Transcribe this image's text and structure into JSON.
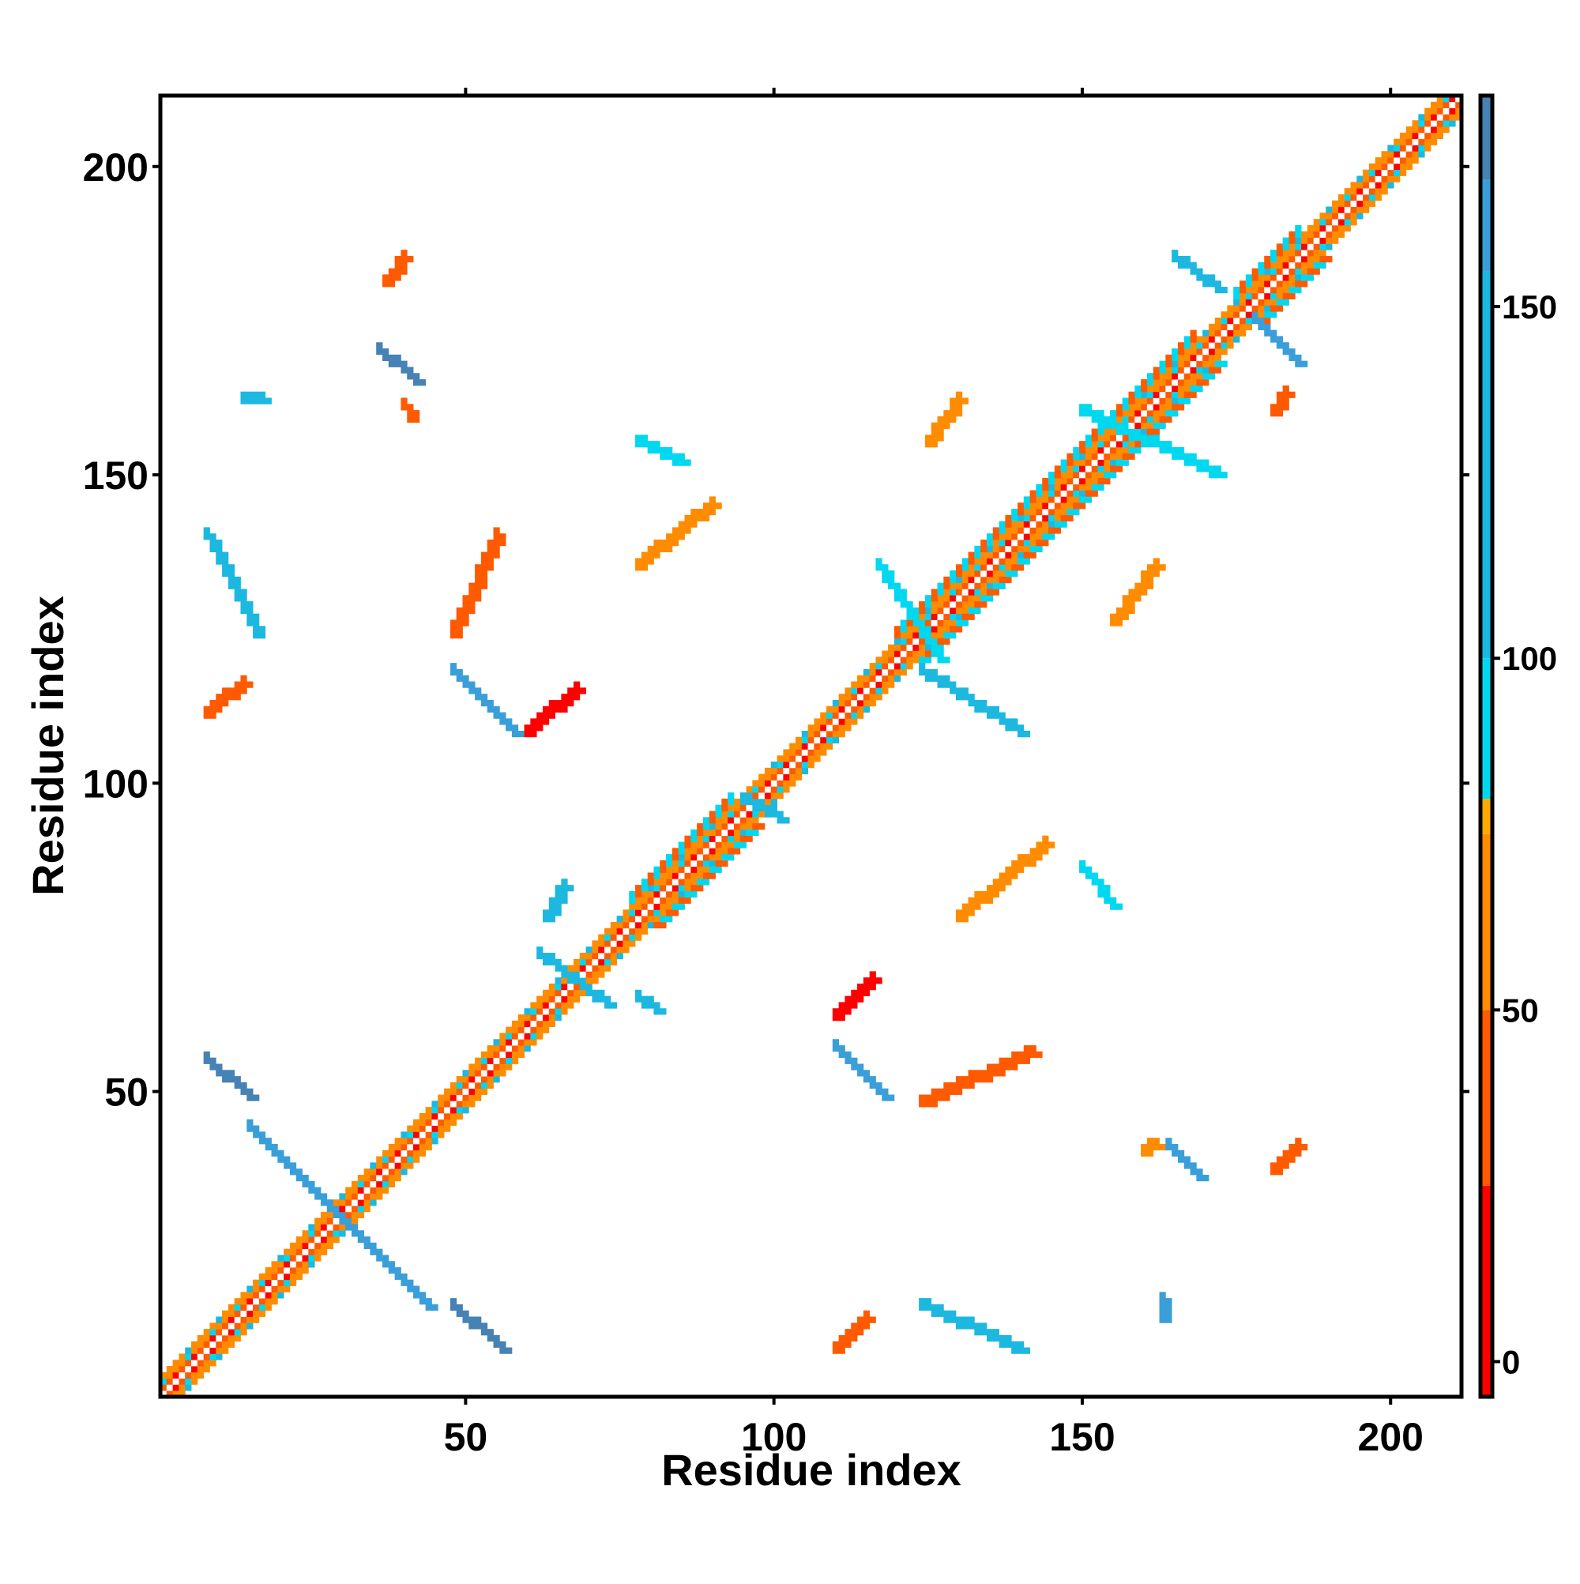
{
  "chart_data": {
    "type": "heatmap",
    "title": "",
    "xlabel": "Residue index",
    "ylabel": "Residue index",
    "xlim": [
      1,
      211
    ],
    "ylim": [
      1,
      211
    ],
    "xticks": [
      50,
      100,
      150,
      200
    ],
    "yticks": [
      50,
      100,
      150,
      200
    ],
    "colorbar": {
      "range": [
        -5,
        180
      ],
      "ticks": [
        0,
        50,
        100,
        150
      ],
      "segments": [
        {
          "from": -5,
          "to": 25,
          "color": "#ff0000"
        },
        {
          "from": 25,
          "to": 50,
          "color": "#ff5a00"
        },
        {
          "from": 50,
          "to": 75,
          "color": "#ff8c00"
        },
        {
          "from": 75,
          "to": 80,
          "color": "#ffaa00"
        },
        {
          "from": 80,
          "to": 100,
          "color": "#00d8f0"
        },
        {
          "from": 100,
          "to": 155,
          "color": "#1cb8e0"
        },
        {
          "from": 155,
          "to": 168,
          "color": "#3a9fd8"
        },
        {
          "from": 168,
          "to": 180,
          "color": "#4682b4"
        }
      ]
    },
    "grid": false,
    "features": [
      {
        "kind": "diagonal-band",
        "description": "main diagonal, residues 1-211",
        "value_range": [
          0,
          60
        ]
      },
      {
        "kind": "segment",
        "from": [
          8,
          55
        ],
        "to": [
          15,
          49
        ],
        "value": 170
      },
      {
        "kind": "segment",
        "from": [
          15,
          44
        ],
        "to": [
          44,
          15
        ],
        "value": 165
      },
      {
        "kind": "segment",
        "from": [
          48,
          15
        ],
        "to": [
          56,
          8
        ],
        "value": 170
      },
      {
        "kind": "segment",
        "from": [
          48,
          118
        ],
        "to": [
          58,
          108
        ],
        "value": 168
      },
      {
        "kind": "segment",
        "from": [
          60,
          108
        ],
        "to": [
          68,
          115
        ],
        "value": 5
      },
      {
        "kind": "segment",
        "from": [
          110,
          57
        ],
        "to": [
          118,
          49
        ],
        "value": 168
      },
      {
        "kind": "segment",
        "from": [
          110,
          62
        ],
        "to": [
          116,
          68
        ],
        "value": 5
      },
      {
        "kind": "segment",
        "from": [
          8,
          140
        ],
        "to": [
          16,
          124
        ],
        "value": 120
      },
      {
        "kind": "segment",
        "from": [
          8,
          111
        ],
        "to": [
          14,
          116
        ],
        "value": 40
      },
      {
        "kind": "segment",
        "from": [
          14,
          162
        ],
        "to": [
          17,
          162
        ],
        "value": 150
      },
      {
        "kind": "segment",
        "from": [
          36,
          170
        ],
        "to": [
          42,
          165
        ],
        "value": 170
      },
      {
        "kind": "segment",
        "from": [
          37,
          181
        ],
        "to": [
          40,
          185
        ],
        "value": 50
      },
      {
        "kind": "segment",
        "from": [
          40,
          161
        ],
        "to": [
          41,
          159
        ],
        "value": 50
      },
      {
        "kind": "segment",
        "from": [
          48,
          124
        ],
        "to": [
          55,
          140
        ],
        "value": 30
      },
      {
        "kind": "segment",
        "from": [
          110,
          8
        ],
        "to": [
          115,
          13
        ],
        "value": 40
      },
      {
        "kind": "segment",
        "from": [
          124,
          15
        ],
        "to": [
          140,
          8
        ],
        "value": 120
      },
      {
        "kind": "segment",
        "from": [
          163,
          13
        ],
        "to": [
          163,
          16
        ],
        "value": 165
      },
      {
        "kind": "segment",
        "from": [
          124,
          48
        ],
        "to": [
          142,
          56
        ],
        "value": 35
      },
      {
        "kind": "segment",
        "from": [
          160,
          40
        ],
        "to": [
          162,
          41
        ],
        "value": 55
      },
      {
        "kind": "segment",
        "from": [
          164,
          41
        ],
        "to": [
          169,
          36
        ],
        "value": 165
      },
      {
        "kind": "segment",
        "from": [
          181,
          37
        ],
        "to": [
          185,
          41
        ],
        "value": 50
      },
      {
        "kind": "segment",
        "from": [
          165,
          185
        ],
        "to": [
          172,
          180
        ],
        "value": 130
      },
      {
        "kind": "segment",
        "from": [
          178,
          175
        ],
        "to": [
          185,
          168
        ],
        "value": 160
      },
      {
        "kind": "segment",
        "from": [
          181,
          160
        ],
        "to": [
          183,
          163
        ],
        "value": 30
      },
      {
        "kind": "segment",
        "from": [
          125,
          155
        ],
        "to": [
          130,
          162
        ],
        "value": 55
      },
      {
        "kind": "segment",
        "from": [
          155,
          126
        ],
        "to": [
          162,
          135
        ],
        "value": 55
      },
      {
        "kind": "segment",
        "from": [
          78,
          135
        ],
        "to": [
          90,
          145
        ],
        "value": 55
      },
      {
        "kind": "segment",
        "from": [
          130,
          78
        ],
        "to": [
          144,
          90
        ],
        "value": 55
      },
      {
        "kind": "segment",
        "from": [
          117,
          135
        ],
        "to": [
          127,
          120
        ],
        "value": 100
      },
      {
        "kind": "segment",
        "from": [
          124,
          118
        ],
        "to": [
          140,
          108
        ],
        "value": 120
      },
      {
        "kind": "segment",
        "from": [
          62,
          72
        ],
        "to": [
          73,
          64
        ],
        "value": 110
      },
      {
        "kind": "segment",
        "from": [
          95,
          97
        ],
        "to": [
          101,
          94
        ],
        "value": 120
      },
      {
        "kind": "segment",
        "from": [
          78,
          65
        ],
        "to": [
          81,
          63
        ],
        "value": 120
      },
      {
        "kind": "segment",
        "from": [
          63,
          78
        ],
        "to": [
          66,
          83
        ],
        "value": 110
      },
      {
        "kind": "segment",
        "from": [
          150,
          86
        ],
        "to": [
          155,
          80
        ],
        "value": 95
      },
      {
        "kind": "segment",
        "from": [
          150,
          160
        ],
        "to": [
          172,
          150
        ],
        "value": 100
      },
      {
        "kind": "segment",
        "from": [
          78,
          155
        ],
        "to": [
          85,
          152
        ],
        "value": 100
      }
    ]
  }
}
